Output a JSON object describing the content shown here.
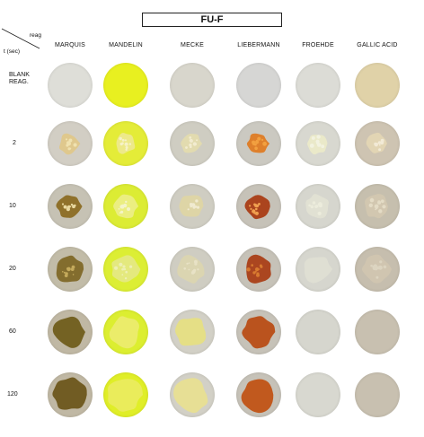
{
  "title": "FU-F",
  "corner": {
    "top": "reag",
    "bottom": "t (sec)"
  },
  "columns": [
    "MARQUIS",
    "MANDELIN",
    "MECKE",
    "LIEBERMANN",
    "FROEHDE",
    "GALLIC ACID"
  ],
  "rows": [
    {
      "label_lines": [
        "BLANK",
        "REAG."
      ]
    },
    {
      "label_lines": [
        "2"
      ]
    },
    {
      "label_lines": [
        "10"
      ]
    },
    {
      "label_lines": [
        "20"
      ]
    },
    {
      "label_lines": [
        "60"
      ]
    },
    {
      "label_lines": [
        "120"
      ]
    }
  ],
  "wells": [
    [
      {
        "bg": "#deded8",
        "spot": null
      },
      {
        "bg": "#e8f020",
        "spot": null
      },
      {
        "bg": "#d8d6cc",
        "spot": null
      },
      {
        "bg": "#d6d6d4",
        "spot": null
      },
      {
        "bg": "#dcdcd6",
        "spot": null
      },
      {
        "bg": "#e0d2a8",
        "spot": null
      }
    ],
    [
      {
        "bg": "#d2cec4",
        "spot": "#e0c888",
        "dots": "#f0e2b0"
      },
      {
        "bg": "#e4ec38",
        "spot": "#eee890",
        "dots": "#f6f2c8"
      },
      {
        "bg": "#cfcdc2",
        "spot": "#e4dcae",
        "dots": "#f2ecd0"
      },
      {
        "bg": "#cbc9c1",
        "spot": "#e07a20",
        "dots": "#f2a040"
      },
      {
        "bg": "#d8d8d0",
        "spot": "#eceac8",
        "dots": "#f2f2e0"
      },
      {
        "bg": "#cec4b2",
        "spot": "#e4d6b4",
        "dots": "#f2ead6"
      }
    ],
    [
      {
        "bg": "#c6c2b4",
        "spot": "#8a6a20",
        "dots": "#e8d8a0"
      },
      {
        "bg": "#dcec34",
        "spot": "#ecee88",
        "dots": "#f4f4c8"
      },
      {
        "bg": "#cfcdc2",
        "spot": "#e0d6a4",
        "dots": "#f0ead0"
      },
      {
        "bg": "#c6c2b8",
        "spot": "#a83a10",
        "dots": "#f0a050"
      },
      {
        "bg": "#d6d6ce",
        "spot": "#e2e2d4",
        "dots": "#ececdc"
      },
      {
        "bg": "#c6bfae",
        "spot": "#d2c8b0",
        "dots": "#e4dcc6"
      }
    ],
    [
      {
        "bg": "#c2bca8",
        "spot": "#7e6624",
        "dots": "#c4aa5c"
      },
      {
        "bg": "#dcee34",
        "spot": "#e4e884",
        "dots": "#eef0b4"
      },
      {
        "bg": "#cfcdc2",
        "spot": "#dcd6b0",
        "dots": "#e8e2c6"
      },
      {
        "bg": "#c6c2b8",
        "spot": "#a83c12",
        "dots": "#d87a30"
      },
      {
        "bg": "#d6d6ce",
        "spot": "#e0e0d4",
        "dots": null
      },
      {
        "bg": "#c6beae",
        "spot": "#d0c6b0",
        "dots": "#dcd4c0"
      }
    ],
    [
      {
        "bg": "#c0b8a4",
        "spot": "#6e5a18",
        "dots": null
      },
      {
        "bg": "#dcee30",
        "spot": "#ecec70",
        "dots": null
      },
      {
        "bg": "#d2d0c6",
        "spot": "#e6e080",
        "dots": null
      },
      {
        "bg": "#c6c2b8",
        "spot": "#b84a10",
        "dots": null
      },
      {
        "bg": "#d6d6ce",
        "spot": null,
        "dots": null
      },
      {
        "bg": "#c8c0b0",
        "spot": null,
        "dots": null
      }
    ],
    [
      {
        "bg": "#c0b8a4",
        "spot": "#6a5418",
        "dots": null
      },
      {
        "bg": "#e0ee28",
        "spot": "#eaec60",
        "dots": null
      },
      {
        "bg": "#d2d0c6",
        "spot": "#e8e090",
        "dots": null
      },
      {
        "bg": "#c6c2b8",
        "spot": "#c05010",
        "dots": null
      },
      {
        "bg": "#d8d8d0",
        "spot": null,
        "dots": null
      },
      {
        "bg": "#c8c0b0",
        "spot": null,
        "dots": null
      }
    ]
  ]
}
